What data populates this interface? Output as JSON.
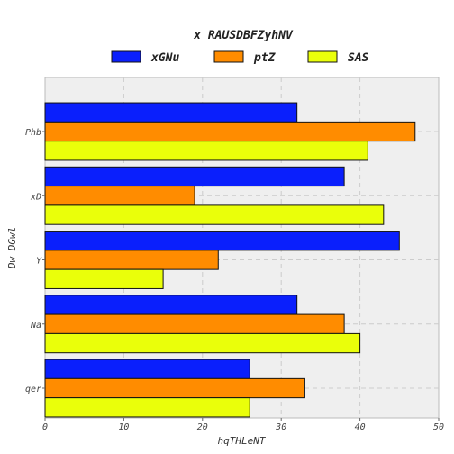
{
  "chart_data": {
    "type": "bar",
    "orientation": "horizontal",
    "title": "x RAUSDBFZyhNV",
    "xlabel": "hqTHLeNT",
    "ylabel": "Dw DGwl",
    "categories": [
      "Phb",
      "xD",
      "Y",
      "Na",
      "qer"
    ],
    "series": [
      {
        "name": "xGNu",
        "color": "#0a1ffc",
        "values": [
          32,
          38,
          45,
          32,
          26
        ]
      },
      {
        "name": "ptZ",
        "color": "#ff8c00",
        "values": [
          47,
          19,
          22,
          38,
          33
        ]
      },
      {
        "name": "SAS",
        "color": "#eaff0a",
        "values": [
          41,
          43,
          15,
          40,
          26
        ]
      }
    ],
    "xlim": [
      0,
      50
    ],
    "xticks": [
      0,
      10,
      20,
      30,
      40,
      50
    ],
    "grid": true,
    "legend_position": "top"
  }
}
